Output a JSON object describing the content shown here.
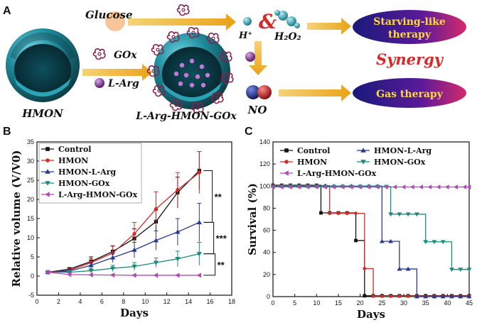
{
  "panels": {
    "a": "A",
    "b": "B",
    "c": "C"
  },
  "scheme": {
    "hmon_label": "HMON",
    "gox_label": "GOx",
    "larg_label": "L-Arg",
    "nano_label": "L-Arg-HMON-GOx",
    "glucose_label": "Glucose",
    "hplus_label": "H⁺",
    "amp_label": "&",
    "h2o2_label": "H₂O₂",
    "no_label": "NO",
    "starving_line1": "Starving-like",
    "starving_line2": "therapy",
    "synergy_label": "Synergy",
    "gas_label": "Gas therapy",
    "colors": {
      "sphere": "#1e8a9a",
      "sphere_dark": "#0c3a44",
      "gox": "#8a1f4a",
      "larg": "#7a2a8a",
      "arrow": "#e8a317",
      "oval_fill": "#3a1a8a",
      "oval_text": "#ffd84a",
      "synergy": "#d42a2a",
      "glucose": "#f8c49a"
    }
  },
  "chart_data": [
    {
      "type": "line",
      "panel": "B",
      "title": "",
      "xlabel": "Days",
      "ylabel": "Relative volume (V/V0)",
      "xlim": [
        0,
        18
      ],
      "ylim": [
        -5,
        35
      ],
      "xticks": [
        0,
        2,
        4,
        6,
        8,
        10,
        12,
        14,
        16,
        18
      ],
      "yticks": [
        -5,
        0,
        5,
        10,
        15,
        20,
        25,
        30,
        35
      ],
      "legend_position": "top-left",
      "x": [
        1,
        3,
        5,
        7,
        9,
        11,
        13,
        15
      ],
      "series": [
        {
          "name": "Control",
          "color": "#111111",
          "marker": "square",
          "values": [
            1,
            1.8,
            3.8,
            6.4,
            9.8,
            14.2,
            21.8,
            27.5
          ],
          "errors": [
            0.2,
            0.4,
            1.2,
            1.5,
            2.5,
            3.0,
            4.0,
            5.0
          ]
        },
        {
          "name": "HMON",
          "color": "#d42a2a",
          "marker": "circle",
          "values": [
            1,
            1.5,
            3.5,
            6.0,
            11.0,
            17.5,
            22.5,
            27.0
          ],
          "errors": [
            0.2,
            0.4,
            1.0,
            1.8,
            3.0,
            4.5,
            4.5,
            5.5
          ]
        },
        {
          "name": "HMON-L-Arg",
          "color": "#2a3a8a",
          "marker": "triangle-up",
          "values": [
            1,
            1.3,
            2.8,
            4.8,
            6.8,
            9.3,
            11.5,
            14.0
          ],
          "errors": [
            0.2,
            0.3,
            0.8,
            1.3,
            2.0,
            2.5,
            3.5,
            5.0
          ]
        },
        {
          "name": "HMON-GOx",
          "color": "#1a8a7a",
          "marker": "triangle-down",
          "values": [
            1,
            1.0,
            1.4,
            2.0,
            2.5,
            3.5,
            4.5,
            5.8
          ],
          "errors": [
            0.2,
            0.2,
            0.5,
            0.8,
            1.0,
            1.2,
            2.0,
            3.0
          ]
        },
        {
          "name": "L-Arg-HMON-GOx",
          "color": "#b34ab3",
          "marker": "triangle-left",
          "values": [
            1,
            0.4,
            0.3,
            0.25,
            0.2,
            0.2,
            0.2,
            0.2
          ],
          "errors": [
            0.1,
            0.1,
            0.1,
            0.1,
            0.1,
            0.1,
            0.1,
            0.1
          ]
        }
      ],
      "significance": [
        "**",
        "***",
        "**"
      ]
    },
    {
      "type": "line",
      "subtype": "step",
      "panel": "C",
      "title": "",
      "xlabel": "Days",
      "ylabel": "Survival (%)",
      "xlim": [
        0,
        45
      ],
      "ylim": [
        0,
        140
      ],
      "xticks": [
        0,
        5,
        10,
        15,
        20,
        25,
        30,
        35,
        40,
        45
      ],
      "yticks": [
        0,
        20,
        40,
        60,
        80,
        100,
        120,
        140
      ],
      "legend_position": "top",
      "series": [
        {
          "name": "Control",
          "color": "#111111",
          "marker": "square",
          "x": [
            0,
            11,
            19,
            21,
            45
          ],
          "values": [
            100,
            75,
            50,
            0,
            0
          ]
        },
        {
          "name": "HMON",
          "color": "#d42a2a",
          "marker": "circle",
          "x": [
            0,
            13,
            21,
            23,
            45
          ],
          "values": [
            100,
            75,
            25,
            0,
            0
          ]
        },
        {
          "name": "HMON-L-Arg",
          "color": "#2a3a8a",
          "marker": "triangle-up",
          "x": [
            0,
            25,
            29,
            33,
            45
          ],
          "values": [
            100,
            50,
            25,
            0,
            0
          ]
        },
        {
          "name": "HMON-GOx",
          "color": "#1a8a7a",
          "marker": "triangle-down",
          "x": [
            0,
            27,
            35,
            41,
            45
          ],
          "values": [
            100,
            75,
            50,
            25,
            25
          ]
        },
        {
          "name": "L-Arg-HMON-GOx",
          "color": "#b34ab3",
          "marker": "triangle-left",
          "x": [
            0,
            45
          ],
          "values": [
            100,
            100
          ]
        }
      ]
    }
  ]
}
